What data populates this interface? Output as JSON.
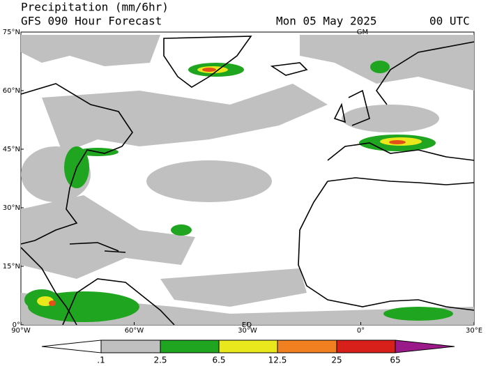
{
  "header": {
    "title": "Precipitation (mm/6hr)",
    "subtitle": "GFS 090 Hour Forecast",
    "date": "Mon 05 May 2025",
    "time": "00 UTC"
  },
  "map": {
    "lat_labels": [
      "75°N",
      "60°N",
      "45°N",
      "30°N",
      "15°N",
      "0°"
    ],
    "lon_labels": [
      "90°W",
      "60°W",
      "30°W",
      "0°",
      "30°E"
    ],
    "marks": [
      "GM",
      "EQ"
    ]
  },
  "colorbar": {
    "labels": [
      ".1",
      "2.5",
      "6.5",
      "12.5",
      "25",
      "65"
    ]
  }
}
